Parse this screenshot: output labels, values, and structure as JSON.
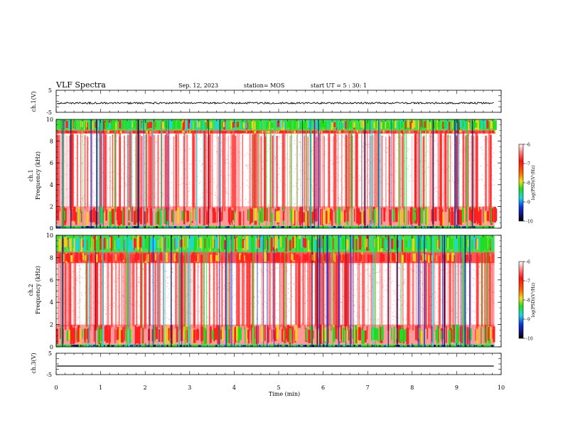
{
  "header": {
    "title": "VLF Spectra",
    "date": "Sep. 12, 2023",
    "station": "station= MOS",
    "start": "start  UT  =  5 : 30: 1"
  },
  "colors": {
    "red": "#ff2020",
    "yellow": "#f2d21a",
    "green": "#22dd22",
    "cyan": "#19d6e6",
    "blue": "#1030e0",
    "navy": "#101060"
  },
  "chart_data": [
    {
      "id": "ch1-waveform",
      "type": "line",
      "ylabel": "ch.1(V)",
      "ylim": [
        -5,
        5
      ],
      "y_ticks": [
        "5",
        "-5"
      ],
      "mean_value": -0.8,
      "noise_amplitude": 0.4
    },
    {
      "id": "ch1-spectrogram",
      "type": "heatmap",
      "ylabel": "ch.1\nFrequency (kHz)",
      "ylabel_line1": "ch.1",
      "ylabel_line2": "Frequency (kHz)",
      "ylim": [
        0,
        10
      ],
      "y_ticks": [
        "0",
        "2",
        "4",
        "6",
        "8",
        "10"
      ],
      "colorbar": {
        "label": "log(PSD)(V²/Hz)",
        "range": [
          -10,
          -6
        ],
        "ticks": [
          "-6",
          "-7",
          "-8",
          "-9",
          "-10"
        ]
      },
      "bands_khz": {
        "top_band": [
          9.0,
          10.0
        ],
        "upper_strong": [
          8.7,
          9.0
        ],
        "low_band": [
          0.2,
          2.0
        ],
        "floor": [
          0,
          0.2
        ]
      }
    },
    {
      "id": "ch2-spectrogram",
      "type": "heatmap",
      "ylabel": "ch.2\nFrequency (kHz)",
      "ylabel_line1": "ch.2",
      "ylabel_line2": "Frequency (kHz)",
      "ylim": [
        0,
        10
      ],
      "y_ticks": [
        "0",
        "2",
        "4",
        "6",
        "8",
        "10"
      ],
      "colorbar": {
        "label": "log(PSD)(V²/Hz)",
        "range": [
          -10,
          -6
        ],
        "ticks": [
          "-6",
          "-7",
          "-8",
          "-9",
          "-10"
        ]
      },
      "bands_khz": {
        "top_band": [
          8.5,
          10.0
        ],
        "upper_strong": [
          7.5,
          8.5
        ],
        "low_band": [
          0.2,
          2.0
        ],
        "floor": [
          0,
          0.2
        ]
      }
    },
    {
      "id": "ch3-waveform",
      "type": "line",
      "ylabel": "ch.3(V)",
      "ylim": [
        -5,
        5
      ],
      "y_ticks": [
        "5",
        "-5"
      ],
      "mean_value": -1.0,
      "noise_amplitude": 0.0
    }
  ],
  "x_axis": {
    "label": "Time (min)",
    "xlim": [
      0,
      10
    ],
    "data_end": 9.85,
    "ticks": [
      "0",
      "1",
      "2",
      "3",
      "4",
      "5",
      "6",
      "7",
      "8",
      "9",
      "10"
    ]
  }
}
